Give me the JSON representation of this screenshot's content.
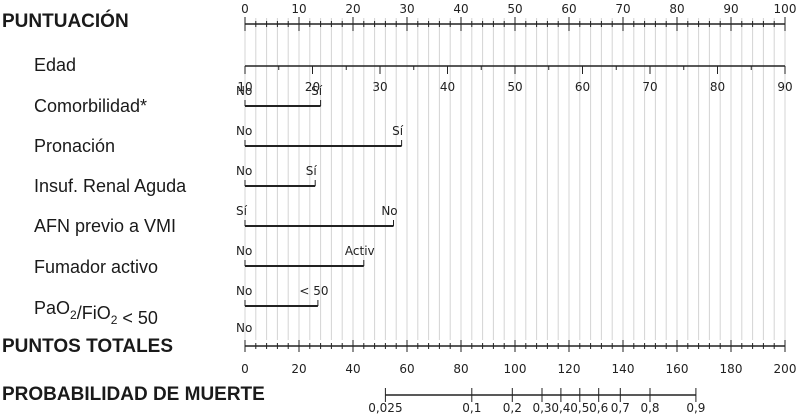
{
  "chart_data": {
    "type": "nomogram",
    "title": "",
    "points_axis": {
      "label": "PUNTUACIÓN",
      "range": [
        0,
        100
      ],
      "tick_labels": [
        "0",
        "10",
        "20",
        "30",
        "40",
        "50",
        "60",
        "70",
        "80",
        "90",
        "100"
      ]
    },
    "variables": [
      {
        "name": "Edad",
        "type": "continuous",
        "tick_labels": [
          "10",
          "20",
          "30",
          "40",
          "50",
          "60",
          "70",
          "80",
          "90"
        ],
        "points_at_min": 0,
        "points_at_max": 100
      },
      {
        "name": "Comorbilidad*",
        "type": "categorical",
        "categories": [
          {
            "label": "No",
            "points": 0
          },
          {
            "label": "Sí",
            "points": 14
          }
        ]
      },
      {
        "name": "Pronación",
        "type": "categorical",
        "categories": [
          {
            "label": "No",
            "points": 0
          },
          {
            "label": "Sí",
            "points": 29
          }
        ]
      },
      {
        "name": "Insuf. Renal Aguda",
        "type": "categorical",
        "categories": [
          {
            "label": "No",
            "points": 0
          },
          {
            "label": "Sí",
            "points": 13
          }
        ]
      },
      {
        "name": "AFN previo a VMI",
        "type": "categorical",
        "categories": [
          {
            "label": "Sí",
            "points": 0
          },
          {
            "label": "No",
            "points": 27.5
          }
        ]
      },
      {
        "name": "Fumador activo",
        "type": "categorical",
        "categories": [
          {
            "label": "No",
            "points": 0
          },
          {
            "label": "Activ",
            "points": 22
          }
        ]
      },
      {
        "name": "PaO2/FiO2 < 50",
        "type": "categorical",
        "categories": [
          {
            "label": "No",
            "points": 0
          },
          {
            "label": "< 50",
            "points": 13.5
          }
        ]
      }
    ],
    "total_points_axis": {
      "label": "PUNTOS TOTALES",
      "range": [
        0,
        200
      ],
      "tick_labels": [
        "0",
        "20",
        "40",
        "60",
        "80",
        "100",
        "120",
        "140",
        "160",
        "180",
        "200"
      ]
    },
    "probability_axis": {
      "label": "PROBABILIDAD DE  MUERTE",
      "values": [
        {
          "label": "0,025",
          "total_points": 52
        },
        {
          "label": "0,1",
          "total_points": 84
        },
        {
          "label": "0,2",
          "total_points": 99
        },
        {
          "label": "0,3",
          "total_points": 110
        },
        {
          "label": "0,4",
          "total_points": 117
        },
        {
          "label": "0,5",
          "total_points": 124
        },
        {
          "label": "0,6",
          "total_points": 131
        },
        {
          "label": "0,7",
          "total_points": 139
        },
        {
          "label": "0,8",
          "total_points": 150
        },
        {
          "label": "0,9",
          "total_points": 167
        }
      ]
    },
    "grid": true
  }
}
